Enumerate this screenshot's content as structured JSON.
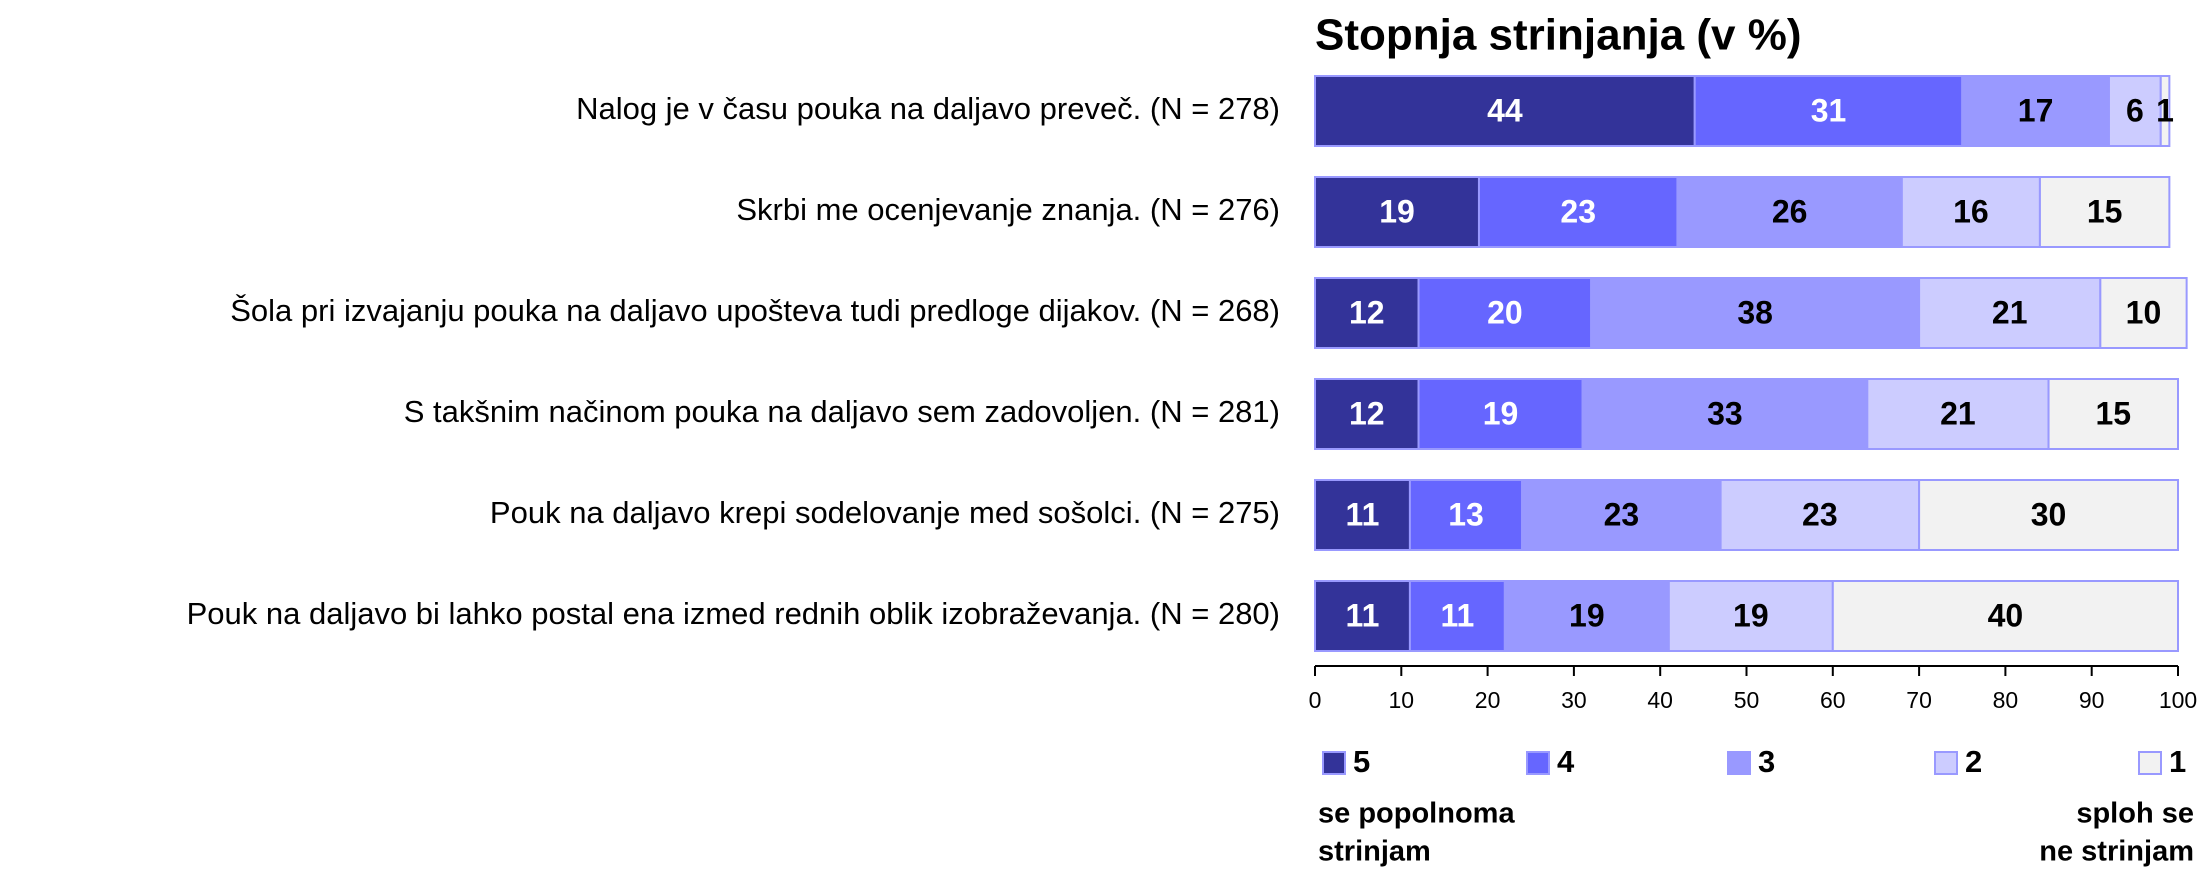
{
  "chart_data": {
    "type": "stacked_barh",
    "title": "Stopnja strinjanja (v %)",
    "categories": [
      "Nalog je v času pouka na daljavo preveč. (N = 278)",
      "Skrbi me ocenjevanje znanja. (N = 276)",
      "Šola pri izvajanju pouka na daljavo upošteva tudi predloge dijakov. (N = 268)",
      "S takšnim načinom pouka na daljavo sem zadovoljen. (N = 281)",
      "Pouk na daljavo krepi sodelovanje med sošolci. (N = 275)",
      "Pouk na daljavo bi lahko postal ena izmed rednih oblik izobraževanja. (N = 280)"
    ],
    "series": [
      {
        "name": "5",
        "color": "#333399",
        "text_color": "#ffffff",
        "values": [
          44,
          19,
          12,
          12,
          11,
          11
        ]
      },
      {
        "name": "4",
        "color": "#6666ff",
        "text_color": "#ffffff",
        "values": [
          31,
          23,
          20,
          19,
          13,
          11
        ]
      },
      {
        "name": "3",
        "color": "#9999ff",
        "text_color": "#000000",
        "values": [
          17,
          26,
          38,
          33,
          23,
          19
        ]
      },
      {
        "name": "2",
        "color": "#ccccff",
        "text_color": "#000000",
        "values": [
          6,
          16,
          21,
          21,
          23,
          19
        ]
      },
      {
        "name": "1",
        "color": "#f2f2f2",
        "text_color": "#000000",
        "values": [
          1,
          15,
          10,
          15,
          30,
          40
        ]
      }
    ],
    "xlim": [
      0,
      100
    ],
    "xticks": [
      0,
      10,
      20,
      30,
      40,
      50,
      60,
      70,
      80,
      90,
      100
    ],
    "annotation_left": [
      "se popolnoma",
      "strinjam"
    ],
    "annotation_right": [
      "sploh se",
      "ne strinjam"
    ]
  }
}
